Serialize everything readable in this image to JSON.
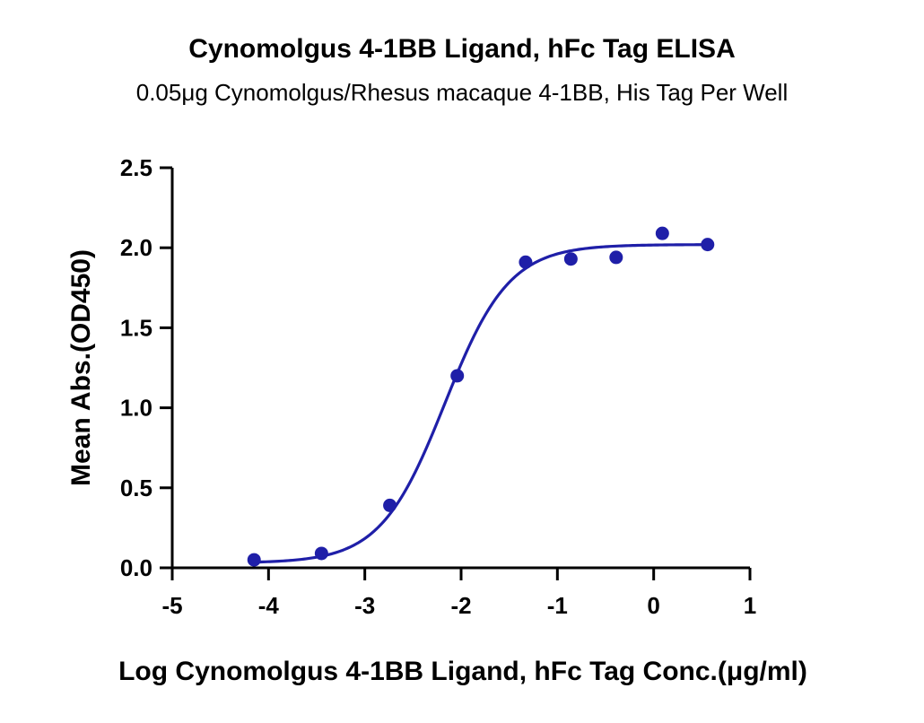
{
  "chart_data": {
    "type": "scatter",
    "title": "Cynomolgus 4-1BB Ligand, hFc Tag ELISA",
    "subtitle": "0.05μg Cynomolgus/Rhesus macaque 4-1BB, His Tag Per Well",
    "xlabel": "Log Cynomolgus 4-1BB Ligand, hFc Tag Conc.(μg/ml)",
    "ylabel": "Mean Abs.(OD450)",
    "xlim": [
      -5,
      1
    ],
    "ylim": [
      0,
      2.5
    ],
    "x_ticks": [
      "-5",
      "-4",
      "-3",
      "-2",
      "-1",
      "0",
      "1"
    ],
    "y_ticks": [
      "0.0",
      "0.5",
      "1.0",
      "1.5",
      "2.0",
      "2.5"
    ],
    "grid": false,
    "color": "#1f1fa8",
    "series": [
      {
        "points": [
          {
            "x": -4.15,
            "y": 0.05
          },
          {
            "x": -3.45,
            "y": 0.09
          },
          {
            "x": -2.74,
            "y": 0.39
          },
          {
            "x": -2.04,
            "y": 1.2
          },
          {
            "x": -1.33,
            "y": 1.91
          },
          {
            "x": -0.86,
            "y": 1.93
          },
          {
            "x": -0.39,
            "y": 1.94
          },
          {
            "x": 0.09,
            "y": 2.09
          },
          {
            "x": 0.56,
            "y": 2.02
          }
        ],
        "fit": {
          "model": "4PL",
          "bottom": 0.03,
          "top": 2.02,
          "logEC50": -2.17,
          "hill": 1.3
        }
      }
    ]
  }
}
